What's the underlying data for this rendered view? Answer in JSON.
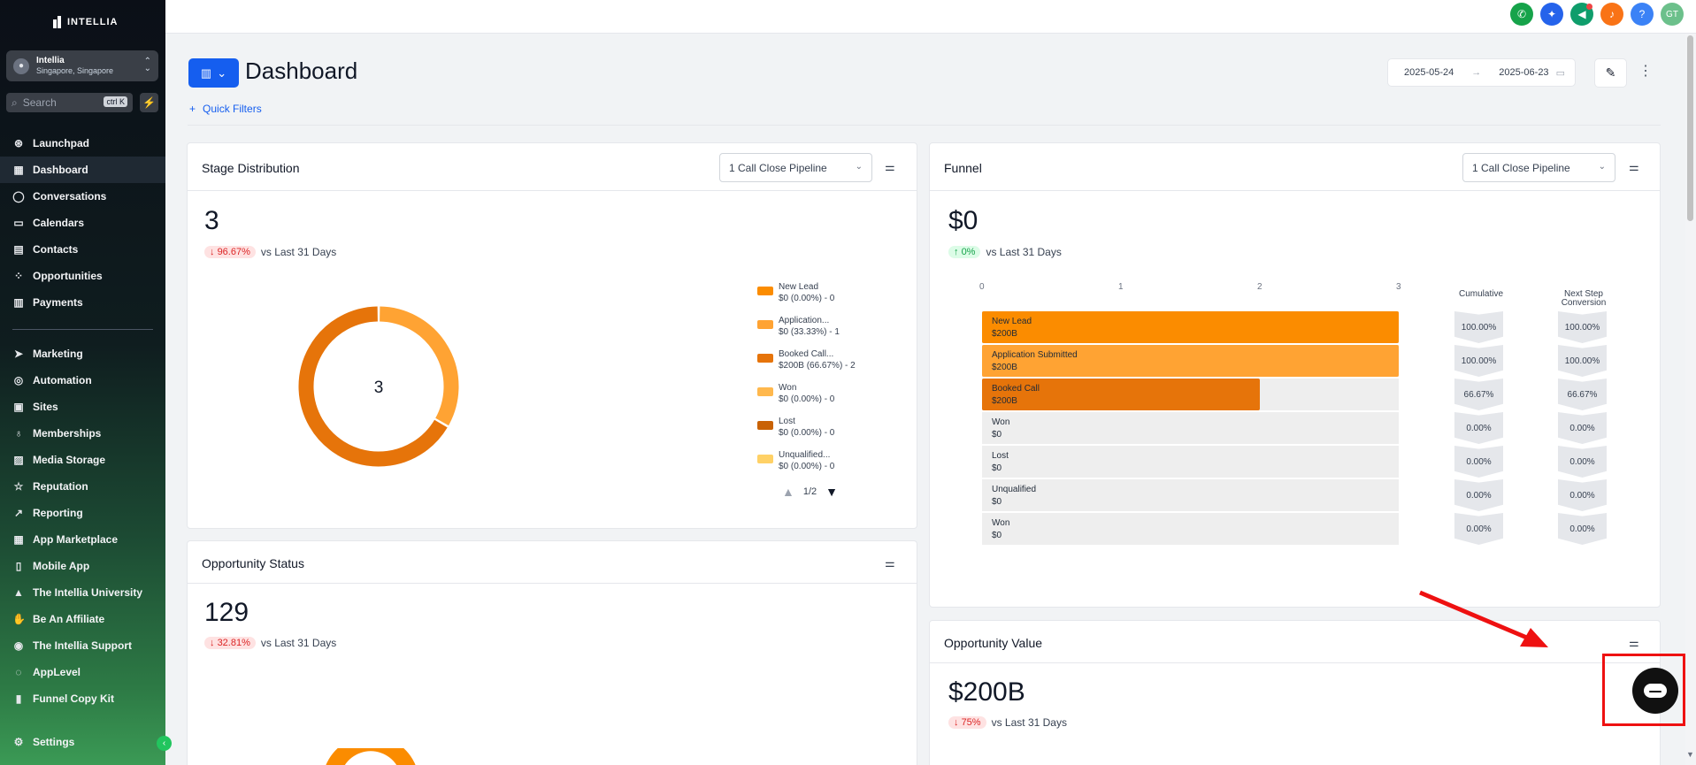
{
  "brand": {
    "name": "INTELLIA"
  },
  "account": {
    "name": "Intellia",
    "location": "Singapore, Singapore"
  },
  "search": {
    "placeholder": "Search",
    "shortcut": "ctrl K"
  },
  "nav_primary": [
    {
      "label": "Launchpad",
      "icon": "rocket-icon",
      "glyph": "⊛"
    },
    {
      "label": "Dashboard",
      "icon": "grid-icon",
      "glyph": "▦",
      "active": true
    },
    {
      "label": "Conversations",
      "icon": "chat-icon",
      "glyph": "◯"
    },
    {
      "label": "Calendars",
      "icon": "calendar-icon",
      "glyph": "▭"
    },
    {
      "label": "Contacts",
      "icon": "contacts-icon",
      "glyph": "▤"
    },
    {
      "label": "Opportunities",
      "icon": "opportunities-icon",
      "glyph": "⁘"
    },
    {
      "label": "Payments",
      "icon": "payments-icon",
      "glyph": "▥"
    }
  ],
  "nav_secondary": [
    {
      "label": "Marketing",
      "icon": "send-icon",
      "glyph": "➤"
    },
    {
      "label": "Automation",
      "icon": "automation-icon",
      "glyph": "◎"
    },
    {
      "label": "Sites",
      "icon": "sites-icon",
      "glyph": "▣"
    },
    {
      "label": "Memberships",
      "icon": "memberships-icon",
      "glyph": "♁"
    },
    {
      "label": "Media Storage",
      "icon": "media-icon",
      "glyph": "▨"
    },
    {
      "label": "Reputation",
      "icon": "star-icon",
      "glyph": "☆"
    },
    {
      "label": "Reporting",
      "icon": "chart-icon",
      "glyph": "↗"
    },
    {
      "label": "App Marketplace",
      "icon": "apps-icon",
      "glyph": "▦"
    },
    {
      "label": "Mobile App",
      "icon": "mobile-icon",
      "glyph": "▯"
    },
    {
      "label": "The Intellia University",
      "icon": "graduation-icon",
      "glyph": "▲"
    },
    {
      "label": "Be An Affiliate",
      "icon": "handshake-icon",
      "glyph": "✋"
    },
    {
      "label": "The Intellia Support",
      "icon": "support-icon",
      "glyph": "◉"
    },
    {
      "label": "AppLevel",
      "icon": "whatsapp-icon",
      "glyph": "◌"
    },
    {
      "label": "Funnel Copy Kit",
      "icon": "document-icon",
      "glyph": "▮"
    }
  ],
  "nav_settings": {
    "label": "Settings",
    "icon": "gear-icon",
    "glyph": "⚙"
  },
  "top_icons": [
    {
      "name": "phone-icon",
      "glyph": "✆",
      "color": "#16a34a"
    },
    {
      "name": "magic-icon",
      "glyph": "✦",
      "color": "#2563eb"
    },
    {
      "name": "megaphone-icon",
      "glyph": "◀",
      "color": "#0f9d6b",
      "dot": true
    },
    {
      "name": "bell-icon",
      "glyph": "♪",
      "color": "#f97316"
    },
    {
      "name": "help-icon",
      "glyph": "?",
      "color": "#3b82f6"
    },
    {
      "name": "user-avatar",
      "glyph": "GT",
      "color": "#6cc08b"
    }
  ],
  "header": {
    "title": "Dashboard",
    "quick_filters": "Quick Filters",
    "date_start": "2025-05-24",
    "date_end": "2025-06-23"
  },
  "stage_distribution": {
    "title": "Stage Distribution",
    "pipeline": "1 Call Close Pipeline",
    "value": "3",
    "delta": "96.67%",
    "delta_suffix": "vs Last 31 Days",
    "donut_center": "3",
    "legend": [
      {
        "name": "New Lead",
        "detail": "$0 (0.00%) - 0",
        "color": "#fb8c00"
      },
      {
        "name": "Application...",
        "detail": "$0 (33.33%) - 1",
        "color": "#ffa333"
      },
      {
        "name": "Booked Call...",
        "detail": "$200B (66.67%) - 2",
        "color": "#e6740a"
      },
      {
        "name": "Won",
        "detail": "$0 (0.00%) - 0",
        "color": "#ffb84d"
      },
      {
        "name": "Lost",
        "detail": "$0 (0.00%) - 0",
        "color": "#c96205"
      },
      {
        "name": "Unqualified...",
        "detail": "$0 (0.00%) - 0",
        "color": "#ffd166"
      }
    ],
    "pager": "1/2"
  },
  "funnel": {
    "title": "Funnel",
    "pipeline": "1 Call Close Pipeline",
    "value": "$0",
    "delta": "0%",
    "delta_suffix": "vs Last 31 Days",
    "axis_ticks": [
      "0",
      "1",
      "2",
      "3"
    ],
    "cumulative_label": "Cumulative",
    "next_step_label_1": "Next Step",
    "next_step_label_2": "Conversion",
    "rows": [
      {
        "name": "New Lead",
        "amount": "$200B",
        "count": 3,
        "color": "#fb8c00",
        "cumulative": "100.00%",
        "next": "100.00%"
      },
      {
        "name": "Application Submitted",
        "amount": "$200B",
        "count": 3,
        "color": "#ffa333",
        "cumulative": "100.00%",
        "next": "100.00%"
      },
      {
        "name": "Booked Call",
        "amount": "$200B",
        "count": 2,
        "color": "#e6740a",
        "cumulative": "66.67%",
        "next": "66.67%"
      },
      {
        "name": "Won",
        "amount": "$0",
        "count": 0,
        "color": "#ffb84d",
        "cumulative": "0.00%",
        "next": "0.00%"
      },
      {
        "name": "Lost",
        "amount": "$0",
        "count": 0,
        "color": "#c96205",
        "cumulative": "0.00%",
        "next": "0.00%"
      },
      {
        "name": "Unqualified",
        "amount": "$0",
        "count": 0,
        "color": "#ffd166",
        "cumulative": "0.00%",
        "next": "0.00%"
      },
      {
        "name": "Won",
        "amount": "$0",
        "count": 0,
        "color": "#ffb84d",
        "cumulative": "0.00%",
        "next": "0.00%"
      }
    ]
  },
  "opportunity_status": {
    "title": "Opportunity Status",
    "value": "129",
    "delta": "32.81%",
    "delta_suffix": "vs Last 31 Days"
  },
  "opportunity_value": {
    "title": "Opportunity Value",
    "value": "$200B",
    "delta": "75%",
    "delta_suffix": "vs Last 31 Days"
  },
  "chart_data": [
    {
      "type": "pie",
      "categories": [
        "New Lead",
        "Application...",
        "Booked Call...",
        "Won",
        "Lost",
        "Unqualified..."
      ],
      "values": [
        0,
        1,
        2,
        0,
        0,
        0
      ]
    },
    {
      "type": "bar",
      "categories": [
        "New Lead",
        "Application Submitted",
        "Booked Call",
        "Won",
        "Lost",
        "Unqualified",
        "Won"
      ],
      "values": [
        3,
        3,
        2,
        0,
        0,
        0,
        0
      ],
      "xlim": [
        0,
        3
      ]
    }
  ]
}
